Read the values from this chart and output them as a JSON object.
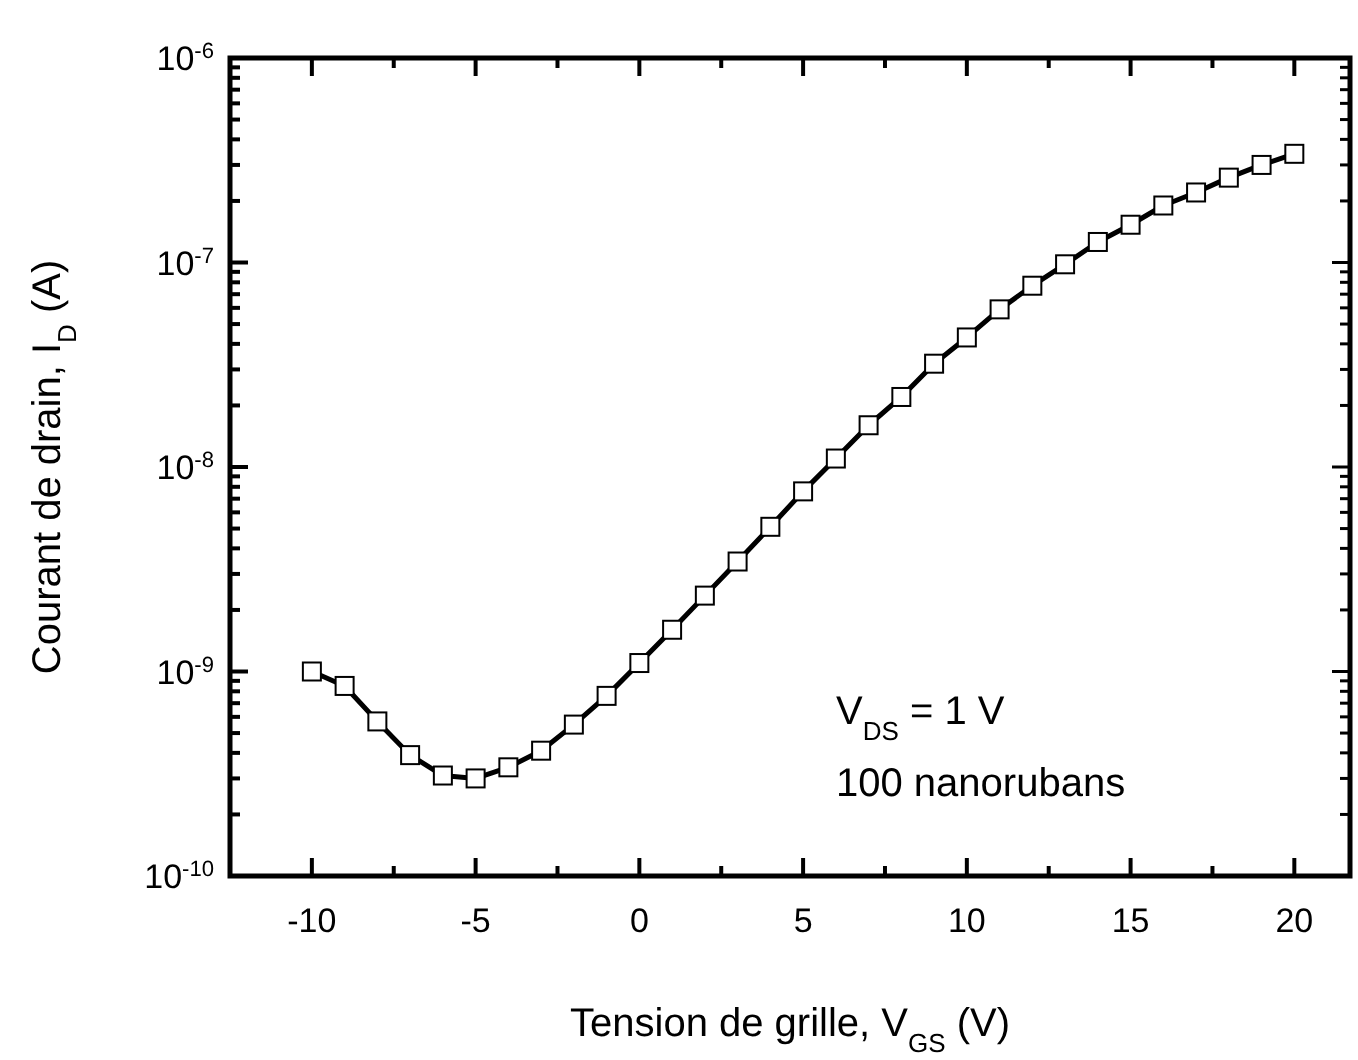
{
  "chart_data": {
    "type": "line",
    "xlabel": "Tension de grille, V$_{GS}$ (V)",
    "ylabel": "Courant de drain, I$_{D}$ (A)",
    "annotations": [
      "V$_{DS}$ = 1 V",
      "100 nanorubans"
    ],
    "x": [
      -10,
      -9,
      -8,
      -7,
      -6,
      -5,
      -4,
      -3,
      -2,
      -1,
      0,
      1,
      2,
      3,
      4,
      5,
      6,
      7,
      8,
      9,
      10,
      11,
      12,
      13,
      14,
      15,
      16,
      17,
      18,
      19,
      20
    ],
    "series": [
      {
        "color": "#000000",
        "values": [
          1e-09,
          8.5e-10,
          5.7e-10,
          3.9e-10,
          3.1e-10,
          3e-10,
          3.4e-10,
          4.1e-10,
          5.5e-10,
          7.6e-10,
          1.1e-09,
          1.6e-09,
          2.35e-09,
          3.45e-09,
          5.1e-09,
          7.6e-09,
          1.1e-08,
          1.6e-08,
          2.2e-08,
          3.2e-08,
          4.3e-08,
          5.9e-08,
          7.7e-08,
          9.8e-08,
          1.26e-07,
          1.53e-07,
          1.9e-07,
          2.2e-07,
          2.6e-07,
          3e-07,
          3.4e-07
        ]
      }
    ],
    "log": "y",
    "marker": "square",
    "line_style": "solid",
    "grid": false,
    "xlim": [
      -12.5,
      21.7
    ],
    "xticks": [
      -10,
      {
        "value": -7.5,
        "label": null
      },
      -5,
      {
        "value": -2.5,
        "label": null
      },
      0,
      {
        "value": 2.5,
        "label": null
      },
      5,
      {
        "value": 7.5,
        "label": null
      },
      10,
      {
        "value": 12.5,
        "label": null
      },
      15,
      {
        "value": 17.5,
        "label": null
      },
      20
    ],
    "ylim": [
      1e-10,
      1e-06
    ],
    "yticks": [
      {
        "value": 1e-10,
        "label": "10$^{-10}$"
      },
      {
        "value": 2e-10,
        "label": null
      },
      {
        "value": 3e-10,
        "label": null
      },
      {
        "value": 4e-10,
        "label": null
      },
      {
        "value": 5e-10,
        "label": null
      },
      {
        "value": 6e-10,
        "label": null
      },
      {
        "value": 7e-10,
        "label": null
      },
      {
        "value": 8e-10,
        "label": null
      },
      {
        "value": 9e-10,
        "label": null
      },
      {
        "value": 1e-09,
        "label": "10$^{-9}$"
      },
      {
        "value": 2e-09,
        "label": null
      },
      {
        "value": 3e-09,
        "label": null
      },
      {
        "value": 4e-09,
        "label": null
      },
      {
        "value": 5e-09,
        "label": null
      },
      {
        "value": 6e-09,
        "label": null
      },
      {
        "value": 7e-09,
        "label": null
      },
      {
        "value": 8e-09,
        "label": null
      },
      {
        "value": 9e-09,
        "label": null
      },
      {
        "value": 1e-08,
        "label": "10$^{-8}$"
      },
      {
        "value": 2e-08,
        "label": null
      },
      {
        "value": 3e-08,
        "label": null
      },
      {
        "value": 4e-08,
        "label": null
      },
      {
        "value": 5e-08,
        "label": null
      },
      {
        "value": 6e-08,
        "label": null
      },
      {
        "value": 7e-08,
        "label": null
      },
      {
        "value": 8e-08,
        "label": null
      },
      {
        "value": 9e-08,
        "label": null
      },
      {
        "value": 1e-07,
        "label": "10$^{-7}$"
      },
      {
        "value": 2e-07,
        "label": null
      },
      {
        "value": 3e-07,
        "label": null
      },
      {
        "value": 4e-07,
        "label": null
      },
      {
        "value": 5e-07,
        "label": null
      },
      {
        "value": 6e-07,
        "label": null
      },
      {
        "value": 7e-07,
        "label": null
      },
      {
        "value": 8e-07,
        "label": null
      },
      {
        "value": 9e-07,
        "label": null
      },
      {
        "value": 1e-06,
        "label": "10$^{-6}$"
      }
    ]
  }
}
